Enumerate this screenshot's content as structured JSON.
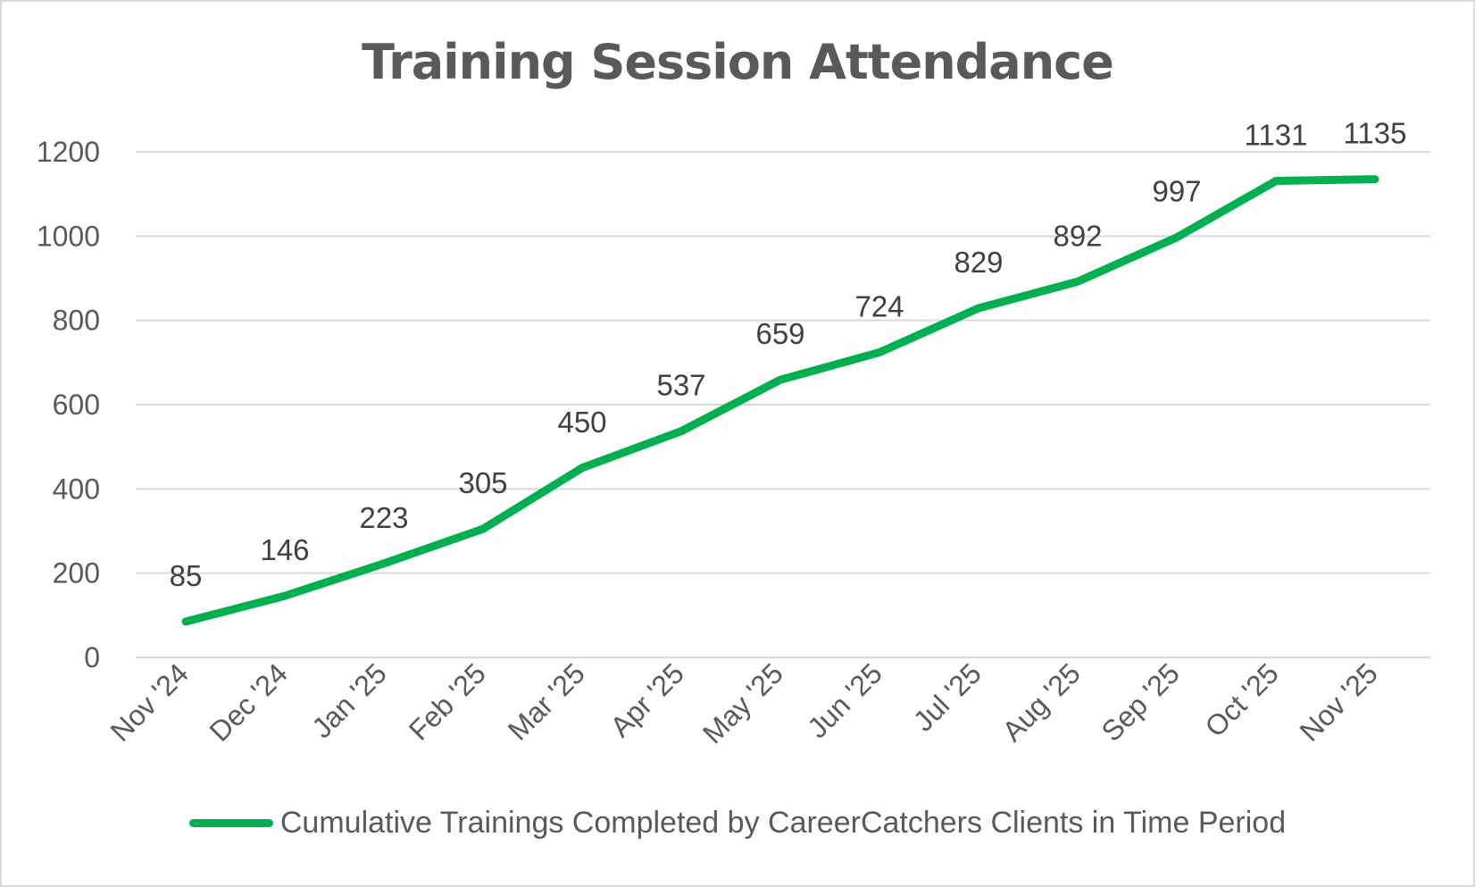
{
  "chart_data": {
    "type": "line",
    "title": "Training Session Attendance",
    "categories": [
      "Nov '24",
      "Dec '24",
      "Jan '25",
      "Feb '25",
      "Mar '25",
      "Apr '25",
      "May '25",
      "Jun '25",
      "Jul '25",
      "Aug '25",
      "Sep '25",
      "Oct '25",
      "Nov '25"
    ],
    "series": [
      {
        "name": "Cumulative Trainings Completed by CareerCatchers Clients in Time Period",
        "values": [
          85,
          146,
          223,
          305,
          450,
          537,
          659,
          724,
          829,
          892,
          997,
          1131,
          1135
        ],
        "color": "#00b050"
      }
    ],
    "y_ticks": [
      "0",
      "200",
      "400",
      "600",
      "800",
      "1000",
      "1200"
    ],
    "ylim": [
      0,
      1200
    ],
    "grid": true,
    "data_labels": true,
    "legend_position": "bottom",
    "gridline_color": "#d9d9d9"
  }
}
